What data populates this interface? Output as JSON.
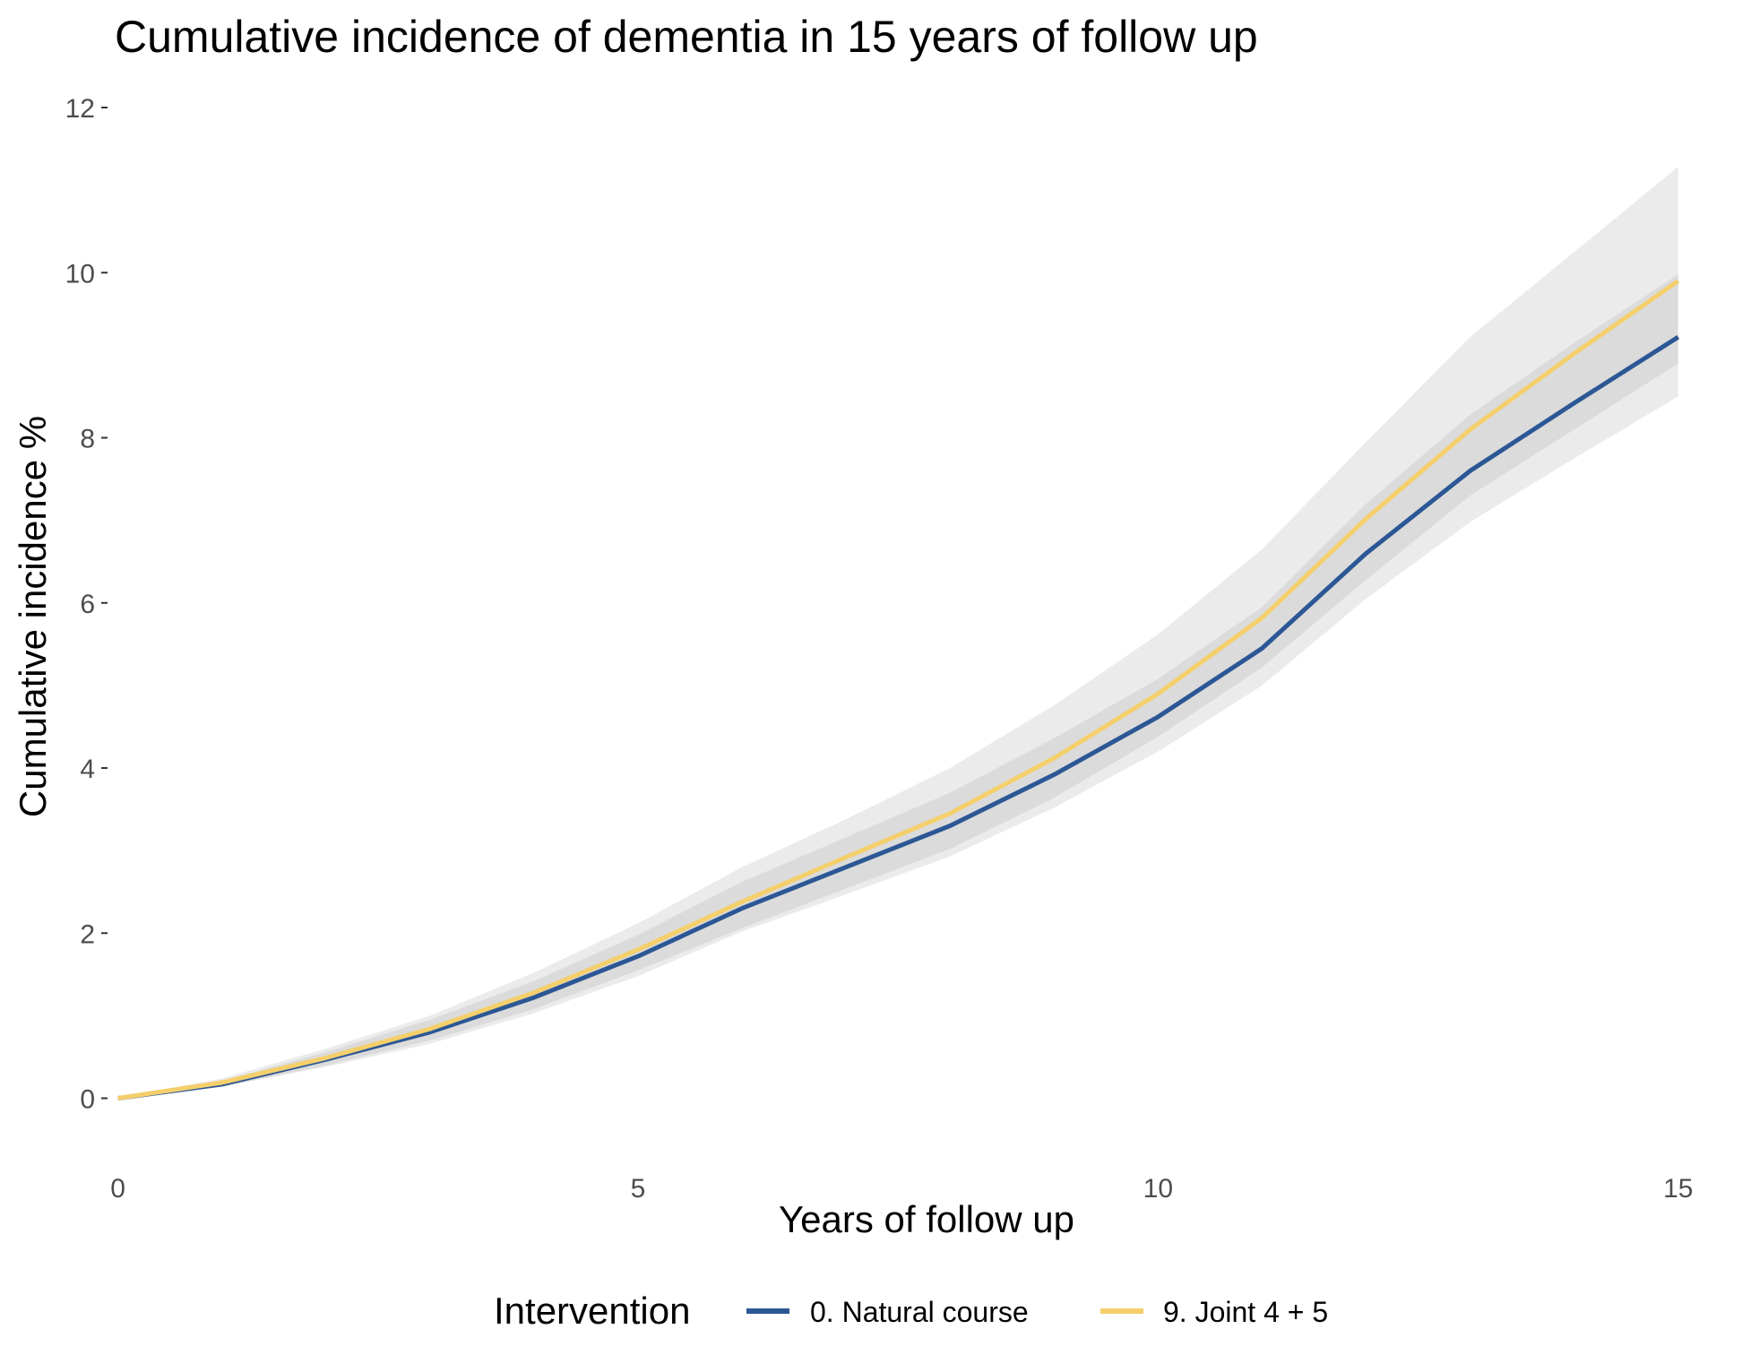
{
  "chart_data": {
    "type": "line",
    "title": "Cumulative incidence of dementia in 15 years of follow up",
    "xlabel": "Years of follow up",
    "ylabel": "Cumulative incidence %",
    "xlim": [
      -0.1,
      15.2
    ],
    "ylim": [
      -0.7,
      12.0
    ],
    "x_ticks": [
      0,
      5,
      10,
      15
    ],
    "y_ticks": [
      0,
      2,
      4,
      6,
      8,
      10,
      12
    ],
    "grid": false,
    "legend": {
      "title": "Intervention",
      "position": "bottom"
    },
    "x": [
      0,
      1,
      2,
      3,
      4,
      5,
      6,
      7,
      8,
      9,
      10,
      11,
      12,
      13,
      14,
      15
    ],
    "series": [
      {
        "name": "0. Natural course",
        "color": "#2c5795",
        "values": [
          0.0,
          0.17,
          0.47,
          0.8,
          1.22,
          1.72,
          2.3,
          2.8,
          3.3,
          3.92,
          4.62,
          5.45,
          6.6,
          7.6,
          8.42,
          9.22
        ],
        "lower": [
          0.0,
          0.14,
          0.38,
          0.66,
          1.03,
          1.48,
          2.02,
          2.47,
          2.93,
          3.52,
          4.2,
          5.0,
          6.05,
          6.98,
          7.75,
          8.5
        ],
        "upper": [
          0.0,
          0.21,
          0.56,
          0.95,
          1.42,
          1.98,
          2.62,
          3.16,
          3.7,
          4.36,
          5.08,
          5.95,
          7.2,
          8.28,
          9.15,
          9.98
        ]
      },
      {
        "name": "9. Joint 4 + 5",
        "color": "#f4cf6b",
        "values": [
          0.0,
          0.19,
          0.49,
          0.84,
          1.28,
          1.8,
          2.38,
          2.92,
          3.45,
          4.12,
          4.9,
          5.82,
          7.02,
          8.1,
          9.02,
          9.9
        ],
        "lower": [
          0.0,
          0.14,
          0.4,
          0.7,
          1.08,
          1.55,
          2.06,
          2.54,
          3.02,
          3.64,
          4.38,
          5.22,
          6.28,
          7.3,
          8.1,
          8.9
        ],
        "upper": [
          0.0,
          0.24,
          0.6,
          1.0,
          1.52,
          2.12,
          2.8,
          3.38,
          4.0,
          4.76,
          5.62,
          6.65,
          7.95,
          9.22,
          10.25,
          11.28
        ]
      }
    ]
  }
}
